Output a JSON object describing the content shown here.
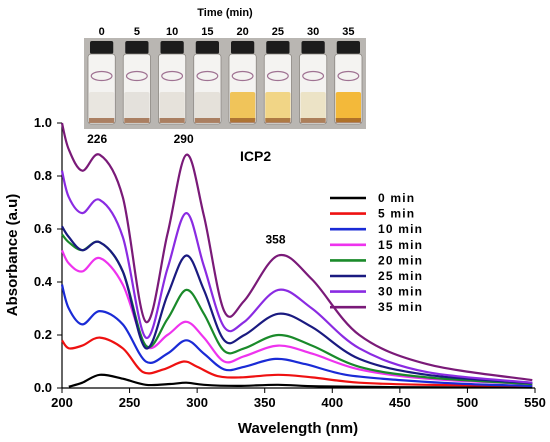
{
  "photo": {
    "title": "Time  (min)",
    "times": [
      "0",
      "5",
      "10",
      "15",
      "20",
      "25",
      "30",
      "35"
    ],
    "liquid_colors": [
      "#e9e6e0",
      "#e4e1dc",
      "#e6e2db",
      "#e5e1da",
      "#f0c45a",
      "#f1d586",
      "#ece3c6",
      "#f3b93a"
    ]
  },
  "chart_data": {
    "type": "line",
    "title": "",
    "label": "ICP2",
    "xlabel": "Wavelength (nm)",
    "ylabel": "Absorbance (a.u)",
    "xlim": [
      200,
      550
    ],
    "ylim": [
      0,
      1.0
    ],
    "xticks": [
      "200",
      "250",
      "300",
      "350",
      "400",
      "450",
      "500",
      "550"
    ],
    "yticks": [
      "0.0",
      "0.2",
      "0.4",
      "0.6",
      "0.8",
      "1.0"
    ],
    "legend_position": "right",
    "peak_labels": [
      {
        "text": "226",
        "x": 226,
        "y": 0.88
      },
      {
        "text": "290",
        "x": 290,
        "y": 0.88
      },
      {
        "text": "358",
        "x": 358,
        "y": 0.5
      }
    ],
    "series": [
      {
        "name": "0 min",
        "color": "#000000",
        "points": [
          [
            205,
            0.005
          ],
          [
            215,
            0.02
          ],
          [
            228,
            0.05
          ],
          [
            245,
            0.035
          ],
          [
            262,
            0.012
          ],
          [
            280,
            0.015
          ],
          [
            292,
            0.02
          ],
          [
            305,
            0.012
          ],
          [
            330,
            0.008
          ],
          [
            360,
            0.012
          ],
          [
            390,
            0.006
          ],
          [
            450,
            0.003
          ],
          [
            548,
            0.002
          ]
        ]
      },
      {
        "name": "5 min",
        "color": "#ee1111",
        "points": [
          [
            200,
            0.18
          ],
          [
            205,
            0.15
          ],
          [
            215,
            0.16
          ],
          [
            228,
            0.19
          ],
          [
            245,
            0.15
          ],
          [
            260,
            0.06
          ],
          [
            275,
            0.07
          ],
          [
            290,
            0.1
          ],
          [
            300,
            0.08
          ],
          [
            315,
            0.045
          ],
          [
            332,
            0.04
          ],
          [
            360,
            0.05
          ],
          [
            385,
            0.04
          ],
          [
            420,
            0.02
          ],
          [
            470,
            0.012
          ],
          [
            548,
            0.008
          ]
        ]
      },
      {
        "name": "10 min",
        "color": "#1a2bd6",
        "points": [
          [
            200,
            0.39
          ],
          [
            205,
            0.3
          ],
          [
            215,
            0.24
          ],
          [
            228,
            0.29
          ],
          [
            245,
            0.24
          ],
          [
            262,
            0.1
          ],
          [
            278,
            0.13
          ],
          [
            292,
            0.18
          ],
          [
            305,
            0.13
          ],
          [
            320,
            0.07
          ],
          [
            335,
            0.08
          ],
          [
            358,
            0.11
          ],
          [
            380,
            0.09
          ],
          [
            410,
            0.05
          ],
          [
            450,
            0.03
          ],
          [
            500,
            0.015
          ],
          [
            548,
            0.008
          ]
        ]
      },
      {
        "name": "15 min",
        "color": "#ee33ee",
        "points": [
          [
            200,
            0.52
          ],
          [
            205,
            0.47
          ],
          [
            215,
            0.44
          ],
          [
            228,
            0.49
          ],
          [
            245,
            0.39
          ],
          [
            262,
            0.16
          ],
          [
            278,
            0.2
          ],
          [
            292,
            0.25
          ],
          [
            305,
            0.19
          ],
          [
            320,
            0.1
          ],
          [
            335,
            0.12
          ],
          [
            360,
            0.16
          ],
          [
            385,
            0.13
          ],
          [
            420,
            0.07
          ],
          [
            470,
            0.035
          ],
          [
            548,
            0.015
          ]
        ]
      },
      {
        "name": "20 min",
        "color": "#1a8a2a",
        "points": [
          [
            200,
            0.58
          ],
          [
            205,
            0.55
          ],
          [
            215,
            0.52
          ],
          [
            228,
            0.55
          ],
          [
            245,
            0.44
          ],
          [
            262,
            0.16
          ],
          [
            278,
            0.26
          ],
          [
            292,
            0.37
          ],
          [
            305,
            0.28
          ],
          [
            320,
            0.14
          ],
          [
            335,
            0.15
          ],
          [
            360,
            0.2
          ],
          [
            385,
            0.16
          ],
          [
            420,
            0.08
          ],
          [
            470,
            0.04
          ],
          [
            548,
            0.015
          ]
        ]
      },
      {
        "name": "25 min",
        "color": "#1a1a80",
        "points": [
          [
            200,
            0.61
          ],
          [
            205,
            0.57
          ],
          [
            215,
            0.52
          ],
          [
            228,
            0.55
          ],
          [
            245,
            0.44
          ],
          [
            262,
            0.15
          ],
          [
            278,
            0.35
          ],
          [
            292,
            0.5
          ],
          [
            305,
            0.37
          ],
          [
            320,
            0.18
          ],
          [
            335,
            0.2
          ],
          [
            360,
            0.28
          ],
          [
            385,
            0.23
          ],
          [
            420,
            0.11
          ],
          [
            470,
            0.05
          ],
          [
            548,
            0.018
          ]
        ]
      },
      {
        "name": "30 min",
        "color": "#8a2be2",
        "points": [
          [
            200,
            0.82
          ],
          [
            205,
            0.72
          ],
          [
            215,
            0.66
          ],
          [
            228,
            0.71
          ],
          [
            245,
            0.57
          ],
          [
            262,
            0.19
          ],
          [
            278,
            0.45
          ],
          [
            292,
            0.66
          ],
          [
            305,
            0.46
          ],
          [
            320,
            0.23
          ],
          [
            335,
            0.25
          ],
          [
            360,
            0.37
          ],
          [
            385,
            0.3
          ],
          [
            420,
            0.15
          ],
          [
            470,
            0.06
          ],
          [
            548,
            0.02
          ]
        ]
      },
      {
        "name": "35 min",
        "color": "#7a1a78",
        "points": [
          [
            200,
            1.0
          ],
          [
            205,
            0.9
          ],
          [
            215,
            0.82
          ],
          [
            228,
            0.88
          ],
          [
            245,
            0.72
          ],
          [
            262,
            0.25
          ],
          [
            278,
            0.58
          ],
          [
            292,
            0.88
          ],
          [
            305,
            0.65
          ],
          [
            320,
            0.29
          ],
          [
            335,
            0.33
          ],
          [
            360,
            0.5
          ],
          [
            385,
            0.41
          ],
          [
            420,
            0.2
          ],
          [
            470,
            0.09
          ],
          [
            548,
            0.03
          ]
        ]
      }
    ]
  }
}
